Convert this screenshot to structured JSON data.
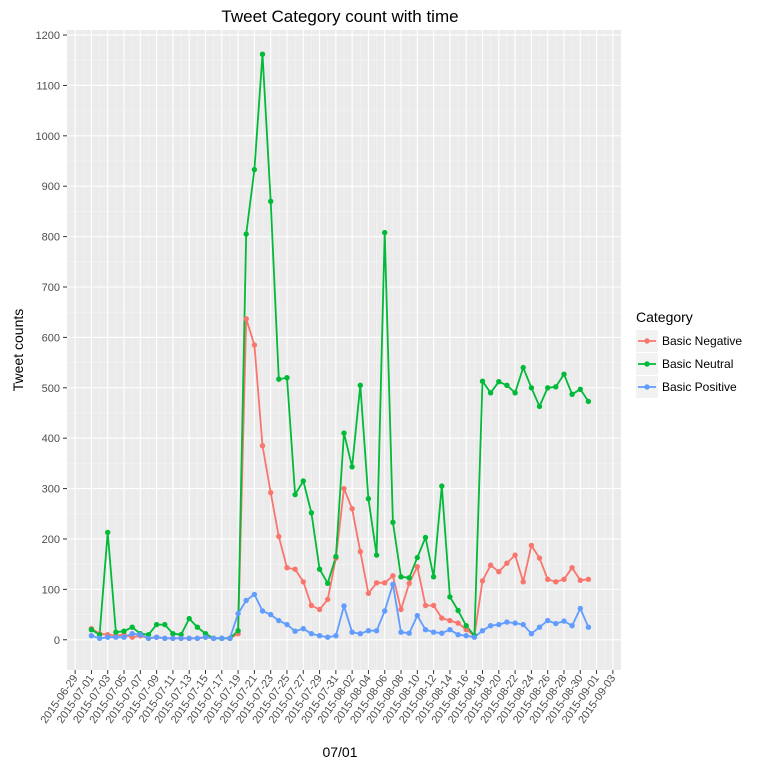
{
  "chart_data": {
    "type": "line",
    "title": "Tweet Category count with time",
    "xlabel": "07/01",
    "ylabel": "Tweet counts",
    "x_axis": {
      "type": "date",
      "range": [
        "2015-06-28",
        "2015-09-04"
      ],
      "tick_labels": [
        "2015-06-29",
        "2015-07-01",
        "2015-07-03",
        "2015-07-05",
        "2015-07-07",
        "2015-07-09",
        "2015-07-11",
        "2015-07-13",
        "2015-07-15",
        "2015-07-17",
        "2015-07-19",
        "2015-07-21",
        "2015-07-23",
        "2015-07-25",
        "2015-07-27",
        "2015-07-29",
        "2015-07-31",
        "2015-08-02",
        "2015-08-04",
        "2015-08-06",
        "2015-08-08",
        "2015-08-10",
        "2015-08-12",
        "2015-08-14",
        "2015-08-16",
        "2015-08-18",
        "2015-08-20",
        "2015-08-22",
        "2015-08-24",
        "2015-08-26",
        "2015-08-28",
        "2015-08-30",
        "2015-09-01",
        "2015-09-03"
      ]
    },
    "y_axis": {
      "range": [
        -60,
        1210
      ],
      "ticks": [
        0,
        100,
        200,
        300,
        400,
        500,
        600,
        700,
        800,
        900,
        1000,
        1100,
        1200
      ]
    },
    "grid": true,
    "legend": {
      "title": "Category",
      "position": "right"
    },
    "x": [
      "2015-07-01",
      "2015-07-02",
      "2015-07-03",
      "2015-07-04",
      "2015-07-05",
      "2015-07-06",
      "2015-07-07",
      "2015-07-08",
      "2015-07-09",
      "2015-07-10",
      "2015-07-11",
      "2015-07-12",
      "2015-07-13",
      "2015-07-14",
      "2015-07-15",
      "2015-07-16",
      "2015-07-17",
      "2015-07-18",
      "2015-07-19",
      "2015-07-20",
      "2015-07-21",
      "2015-07-22",
      "2015-07-23",
      "2015-07-24",
      "2015-07-25",
      "2015-07-26",
      "2015-07-27",
      "2015-07-28",
      "2015-07-29",
      "2015-07-30",
      "2015-07-31",
      "2015-08-01",
      "2015-08-02",
      "2015-08-03",
      "2015-08-04",
      "2015-08-05",
      "2015-08-06",
      "2015-08-07",
      "2015-08-08",
      "2015-08-09",
      "2015-08-10",
      "2015-08-11",
      "2015-08-12",
      "2015-08-13",
      "2015-08-14",
      "2015-08-15",
      "2015-08-16",
      "2015-08-17",
      "2015-08-18",
      "2015-08-19",
      "2015-08-20",
      "2015-08-21",
      "2015-08-22",
      "2015-08-23",
      "2015-08-24",
      "2015-08-25",
      "2015-08-26",
      "2015-08-27",
      "2015-08-28",
      "2015-08-29",
      "2015-08-30",
      "2015-08-31"
    ],
    "series": [
      {
        "name": "Basic Negative",
        "color": "#F8766D",
        "values": [
          22,
          12,
          10,
          8,
          10,
          5,
          8,
          3,
          5,
          3,
          3,
          3,
          3,
          3,
          5,
          3,
          3,
          3,
          12,
          637,
          585,
          385,
          292,
          205,
          143,
          140,
          115,
          68,
          60,
          80,
          162,
          300,
          260,
          175,
          92,
          113,
          113,
          127,
          60,
          112,
          145,
          68,
          68,
          43,
          38,
          33,
          20,
          8,
          117,
          148,
          135,
          152,
          168,
          115,
          187,
          162,
          120,
          115,
          120,
          143,
          118,
          120
        ]
      },
      {
        "name": "Basic Neutral",
        "color": "#00BA38",
        "values": [
          20,
          10,
          213,
          15,
          17,
          25,
          12,
          10,
          30,
          30,
          12,
          10,
          42,
          25,
          12,
          3,
          3,
          3,
          18,
          805,
          933,
          1162,
          870,
          517,
          520,
          288,
          315,
          252,
          140,
          112,
          165,
          410,
          343,
          505,
          280,
          168,
          808,
          233,
          125,
          123,
          163,
          203,
          125,
          305,
          85,
          58,
          28,
          8,
          513,
          490,
          512,
          505,
          490,
          540,
          500,
          463,
          500,
          502,
          527,
          487,
          497,
          473
        ]
      },
      {
        "name": "Basic Positive",
        "color": "#619CFF",
        "values": [
          8,
          3,
          5,
          5,
          5,
          12,
          10,
          3,
          5,
          3,
          3,
          3,
          3,
          3,
          5,
          3,
          3,
          3,
          52,
          78,
          90,
          57,
          50,
          38,
          30,
          17,
          22,
          12,
          8,
          5,
          8,
          67,
          15,
          12,
          18,
          18,
          57,
          110,
          15,
          13,
          48,
          20,
          15,
          13,
          20,
          10,
          8,
          5,
          18,
          28,
          30,
          35,
          33,
          30,
          12,
          25,
          38,
          32,
          37,
          28,
          62,
          25
        ]
      }
    ]
  }
}
